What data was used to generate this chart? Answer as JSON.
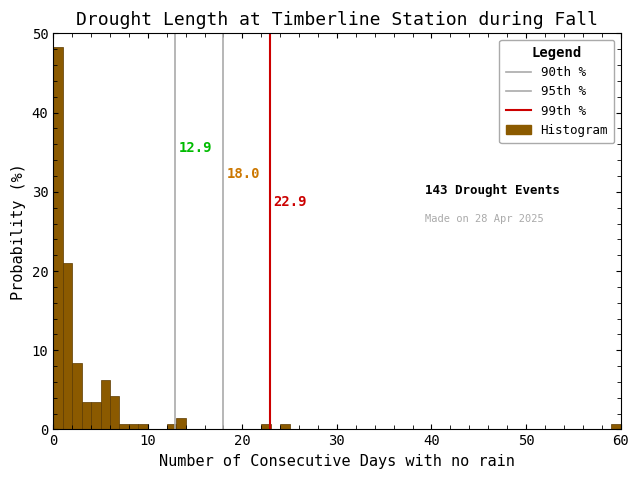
{
  "title": "Drought Length at Timberline Station during Fall",
  "xlabel": "Number of Consecutive Days with no rain",
  "ylabel": "Probability (%)",
  "xlim": [
    0,
    60
  ],
  "ylim": [
    0,
    50
  ],
  "bar_color": "#8B5A00",
  "bar_edge_color": "#5C3A00",
  "background_color": "#ffffff",
  "bin_width": 1,
  "bar_values": [
    48.3,
    21.0,
    8.4,
    3.5,
    3.5,
    6.3,
    4.2,
    0.7,
    0.7,
    0.7,
    0.0,
    0.0,
    0.7,
    1.4,
    0.0,
    0.0,
    0.0,
    0.0,
    0.0,
    0.0,
    0.0,
    0.0,
    0.7,
    0.0,
    0.7,
    0.0,
    0.0,
    0.0,
    0.0,
    0.0,
    0.0,
    0.0,
    0.0,
    0.0,
    0.0,
    0.0,
    0.0,
    0.0,
    0.0,
    0.0,
    0.0,
    0.0,
    0.0,
    0.0,
    0.0,
    0.0,
    0.0,
    0.0,
    0.0,
    0.0,
    0.0,
    0.0,
    0.0,
    0.0,
    0.0,
    0.0,
    0.0,
    0.0,
    0.0,
    0.7
  ],
  "percentile_90": 12.9,
  "percentile_95": 18.0,
  "percentile_99": 22.9,
  "color_90_line": "#aaaaaa",
  "color_90_label": "#00bb00",
  "color_95_line": "#aaaaaa",
  "color_95_label": "#cc7700",
  "color_99_line": "#cc0000",
  "color_99_label": "#cc0000",
  "legend_title": "Legend",
  "n_events": 143,
  "made_on": "Made on 28 Apr 2025",
  "title_fontsize": 13,
  "axis_fontsize": 11,
  "legend_fontsize": 9,
  "annotation_fontsize": 10
}
